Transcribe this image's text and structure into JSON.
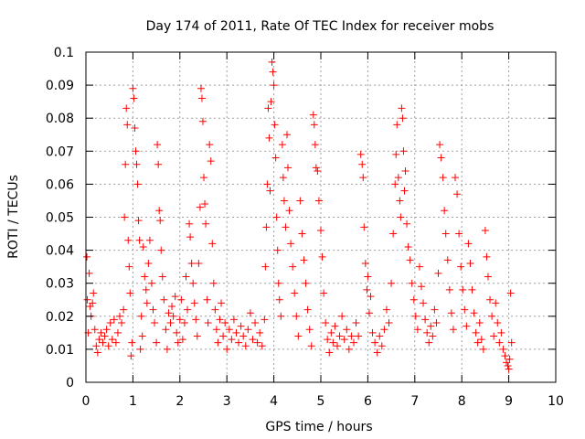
{
  "chart_data": {
    "type": "scatter",
    "title": "Day 174 of 2011, Rate Of TEC Index for receiver mobs",
    "xlabel": "GPS time / hours",
    "ylabel": "ROTI / TECUs",
    "xlim": [
      0,
      10
    ],
    "ylim": [
      0,
      0.1
    ],
    "x_ticks": [
      "0",
      "1",
      "2",
      "3",
      "4",
      "5",
      "6",
      "7",
      "8",
      "9",
      "10"
    ],
    "y_ticks": [
      "0",
      "0.01",
      "0.02",
      "0.03",
      "0.04",
      "0.05",
      "0.06",
      "0.07",
      "0.08",
      "0.09",
      "0.1"
    ],
    "grid": true,
    "marker": "+",
    "series": [
      {
        "name": "ROTI",
        "color": "#ff0000",
        "points": [
          [
            0.02,
            0.038
          ],
          [
            0.03,
            0.025
          ],
          [
            0.05,
            0.015
          ],
          [
            0.07,
            0.033
          ],
          [
            0.09,
            0.023
          ],
          [
            0.11,
            0.02
          ],
          [
            0.14,
            0.024
          ],
          [
            0.16,
            0.027
          ],
          [
            0.19,
            0.016
          ],
          [
            0.22,
            0.011
          ],
          [
            0.25,
            0.009
          ],
          [
            0.28,
            0.013
          ],
          [
            0.32,
            0.015
          ],
          [
            0.36,
            0.012
          ],
          [
            0.4,
            0.014
          ],
          [
            0.44,
            0.016
          ],
          [
            0.48,
            0.011
          ],
          [
            0.52,
            0.018
          ],
          [
            0.56,
            0.013
          ],
          [
            0.6,
            0.019
          ],
          [
            0.64,
            0.012
          ],
          [
            0.68,
            0.015
          ],
          [
            0.72,
            0.02
          ],
          [
            0.76,
            0.018
          ],
          [
            0.8,
            0.022
          ],
          [
            0.82,
            0.05
          ],
          [
            0.84,
            0.066
          ],
          [
            0.86,
            0.083
          ],
          [
            0.88,
            0.078
          ],
          [
            0.9,
            0.043
          ],
          [
            0.92,
            0.035
          ],
          [
            0.94,
            0.027
          ],
          [
            0.96,
            0.008
          ],
          [
            0.98,
            0.012
          ],
          [
            1.0,
            0.089
          ],
          [
            1.02,
            0.086
          ],
          [
            1.04,
            0.077
          ],
          [
            1.06,
            0.07
          ],
          [
            1.08,
            0.066
          ],
          [
            1.1,
            0.06
          ],
          [
            1.12,
            0.049
          ],
          [
            1.14,
            0.043
          ],
          [
            1.16,
            0.01
          ],
          [
            1.18,
            0.02
          ],
          [
            1.2,
            0.014
          ],
          [
            1.22,
            0.041
          ],
          [
            1.25,
            0.032
          ],
          [
            1.28,
            0.028
          ],
          [
            1.3,
            0.024
          ],
          [
            1.33,
            0.036
          ],
          [
            1.36,
            0.043
          ],
          [
            1.4,
            0.03
          ],
          [
            1.43,
            0.022
          ],
          [
            1.46,
            0.018
          ],
          [
            1.5,
            0.012
          ],
          [
            1.52,
            0.072
          ],
          [
            1.54,
            0.066
          ],
          [
            1.56,
            0.052
          ],
          [
            1.58,
            0.049
          ],
          [
            1.6,
            0.04
          ],
          [
            1.63,
            0.032
          ],
          [
            1.66,
            0.025
          ],
          [
            1.7,
            0.016
          ],
          [
            1.73,
            0.01
          ],
          [
            1.76,
            0.021
          ],
          [
            1.8,
            0.018
          ],
          [
            1.83,
            0.023
          ],
          [
            1.86,
            0.02
          ],
          [
            1.9,
            0.026
          ],
          [
            1.93,
            0.015
          ],
          [
            1.96,
            0.012
          ],
          [
            2.0,
            0.019
          ],
          [
            2.03,
            0.025
          ],
          [
            2.06,
            0.013
          ],
          [
            2.1,
            0.018
          ],
          [
            2.13,
            0.032
          ],
          [
            2.16,
            0.022
          ],
          [
            2.2,
            0.048
          ],
          [
            2.22,
            0.044
          ],
          [
            2.25,
            0.036
          ],
          [
            2.28,
            0.03
          ],
          [
            2.31,
            0.024
          ],
          [
            2.34,
            0.019
          ],
          [
            2.37,
            0.014
          ],
          [
            2.4,
            0.036
          ],
          [
            2.43,
            0.053
          ],
          [
            2.45,
            0.089
          ],
          [
            2.47,
            0.086
          ],
          [
            2.49,
            0.079
          ],
          [
            2.51,
            0.062
          ],
          [
            2.53,
            0.054
          ],
          [
            2.55,
            0.048
          ],
          [
            2.58,
            0.025
          ],
          [
            2.6,
            0.018
          ],
          [
            2.63,
            0.072
          ],
          [
            2.66,
            0.067
          ],
          [
            2.69,
            0.042
          ],
          [
            2.72,
            0.03
          ],
          [
            2.75,
            0.022
          ],
          [
            2.78,
            0.016
          ],
          [
            2.81,
            0.012
          ],
          [
            2.85,
            0.019
          ],
          [
            2.88,
            0.024
          ],
          [
            2.92,
            0.014
          ],
          [
            2.96,
            0.018
          ],
          [
            3.0,
            0.01
          ],
          [
            3.05,
            0.016
          ],
          [
            3.1,
            0.013
          ],
          [
            3.15,
            0.019
          ],
          [
            3.2,
            0.015
          ],
          [
            3.25,
            0.012
          ],
          [
            3.3,
            0.017
          ],
          [
            3.35,
            0.014
          ],
          [
            3.4,
            0.011
          ],
          [
            3.45,
            0.016
          ],
          [
            3.5,
            0.021
          ],
          [
            3.55,
            0.013
          ],
          [
            3.6,
            0.018
          ],
          [
            3.65,
            0.012
          ],
          [
            3.7,
            0.015
          ],
          [
            3.75,
            0.011
          ],
          [
            3.8,
            0.019
          ],
          [
            3.82,
            0.035
          ],
          [
            3.84,
            0.047
          ],
          [
            3.86,
            0.06
          ],
          [
            3.88,
            0.083
          ],
          [
            3.9,
            0.074
          ],
          [
            3.92,
            0.058
          ],
          [
            3.94,
            0.085
          ],
          [
            3.96,
            0.097
          ],
          [
            3.98,
            0.094
          ],
          [
            4.0,
            0.09
          ],
          [
            4.02,
            0.078
          ],
          [
            4.04,
            0.068
          ],
          [
            4.06,
            0.05
          ],
          [
            4.08,
            0.04
          ],
          [
            4.1,
            0.03
          ],
          [
            4.12,
            0.025
          ],
          [
            4.15,
            0.02
          ],
          [
            4.18,
            0.072
          ],
          [
            4.2,
            0.062
          ],
          [
            4.22,
            0.055
          ],
          [
            4.25,
            0.047
          ],
          [
            4.28,
            0.075
          ],
          [
            4.3,
            0.065
          ],
          [
            4.33,
            0.052
          ],
          [
            4.36,
            0.042
          ],
          [
            4.4,
            0.035
          ],
          [
            4.44,
            0.027
          ],
          [
            4.48,
            0.02
          ],
          [
            4.52,
            0.014
          ],
          [
            4.56,
            0.055
          ],
          [
            4.6,
            0.045
          ],
          [
            4.64,
            0.037
          ],
          [
            4.68,
            0.03
          ],
          [
            4.72,
            0.022
          ],
          [
            4.76,
            0.016
          ],
          [
            4.8,
            0.011
          ],
          [
            4.84,
            0.081
          ],
          [
            4.86,
            0.078
          ],
          [
            4.88,
            0.072
          ],
          [
            4.9,
            0.065
          ],
          [
            4.93,
            0.064
          ],
          [
            4.96,
            0.055
          ],
          [
            5.0,
            0.046
          ],
          [
            5.03,
            0.038
          ],
          [
            5.06,
            0.027
          ],
          [
            5.1,
            0.018
          ],
          [
            5.14,
            0.013
          ],
          [
            5.18,
            0.009
          ],
          [
            5.22,
            0.015
          ],
          [
            5.26,
            0.012
          ],
          [
            5.3,
            0.017
          ],
          [
            5.35,
            0.011
          ],
          [
            5.4,
            0.014
          ],
          [
            5.45,
            0.02
          ],
          [
            5.5,
            0.013
          ],
          [
            5.55,
            0.016
          ],
          [
            5.6,
            0.01
          ],
          [
            5.65,
            0.014
          ],
          [
            5.7,
            0.012
          ],
          [
            5.75,
            0.018
          ],
          [
            5.8,
            0.014
          ],
          [
            5.85,
            0.069
          ],
          [
            5.88,
            0.066
          ],
          [
            5.9,
            0.062
          ],
          [
            5.92,
            0.047
          ],
          [
            5.95,
            0.036
          ],
          [
            5.98,
            0.028
          ],
          [
            6.0,
            0.032
          ],
          [
            6.03,
            0.021
          ],
          [
            6.06,
            0.026
          ],
          [
            6.1,
            0.015
          ],
          [
            6.15,
            0.012
          ],
          [
            6.2,
            0.009
          ],
          [
            6.25,
            0.014
          ],
          [
            6.3,
            0.011
          ],
          [
            6.35,
            0.016
          ],
          [
            6.4,
            0.022
          ],
          [
            6.45,
            0.018
          ],
          [
            6.5,
            0.03
          ],
          [
            6.54,
            0.045
          ],
          [
            6.58,
            0.06
          ],
          [
            6.6,
            0.069
          ],
          [
            6.62,
            0.078
          ],
          [
            6.65,
            0.062
          ],
          [
            6.68,
            0.055
          ],
          [
            6.7,
            0.05
          ],
          [
            6.72,
            0.083
          ],
          [
            6.74,
            0.08
          ],
          [
            6.76,
            0.07
          ],
          [
            6.78,
            0.058
          ],
          [
            6.8,
            0.064
          ],
          [
            6.83,
            0.048
          ],
          [
            6.86,
            0.041
          ],
          [
            6.9,
            0.037
          ],
          [
            6.94,
            0.03
          ],
          [
            6.98,
            0.025
          ],
          [
            7.02,
            0.02
          ],
          [
            7.06,
            0.016
          ],
          [
            7.1,
            0.035
          ],
          [
            7.14,
            0.029
          ],
          [
            7.18,
            0.024
          ],
          [
            7.22,
            0.019
          ],
          [
            7.26,
            0.015
          ],
          [
            7.3,
            0.012
          ],
          [
            7.34,
            0.017
          ],
          [
            7.38,
            0.014
          ],
          [
            7.42,
            0.022
          ],
          [
            7.46,
            0.018
          ],
          [
            7.5,
            0.033
          ],
          [
            7.53,
            0.072
          ],
          [
            7.56,
            0.068
          ],
          [
            7.6,
            0.062
          ],
          [
            7.63,
            0.052
          ],
          [
            7.66,
            0.045
          ],
          [
            7.7,
            0.037
          ],
          [
            7.74,
            0.028
          ],
          [
            7.78,
            0.021
          ],
          [
            7.82,
            0.016
          ],
          [
            7.86,
            0.062
          ],
          [
            7.9,
            0.057
          ],
          [
            7.94,
            0.045
          ],
          [
            7.98,
            0.035
          ],
          [
            8.02,
            0.028
          ],
          [
            8.06,
            0.022
          ],
          [
            8.1,
            0.017
          ],
          [
            8.14,
            0.042
          ],
          [
            8.18,
            0.036
          ],
          [
            8.22,
            0.028
          ],
          [
            8.26,
            0.021
          ],
          [
            8.3,
            0.015
          ],
          [
            8.34,
            0.012
          ],
          [
            8.38,
            0.018
          ],
          [
            8.42,
            0.013
          ],
          [
            8.46,
            0.01
          ],
          [
            8.5,
            0.046
          ],
          [
            8.53,
            0.038
          ],
          [
            8.56,
            0.032
          ],
          [
            8.6,
            0.025
          ],
          [
            8.64,
            0.02
          ],
          [
            8.68,
            0.014
          ],
          [
            8.72,
            0.024
          ],
          [
            8.76,
            0.018
          ],
          [
            8.8,
            0.012
          ],
          [
            8.84,
            0.015
          ],
          [
            8.88,
            0.01
          ],
          [
            8.92,
            0.008
          ],
          [
            8.95,
            0.006
          ],
          [
            8.98,
            0.005
          ],
          [
            9.0,
            0.004
          ],
          [
            9.02,
            0.007
          ],
          [
            9.04,
            0.027
          ],
          [
            9.06,
            0.012
          ]
        ]
      }
    ]
  }
}
